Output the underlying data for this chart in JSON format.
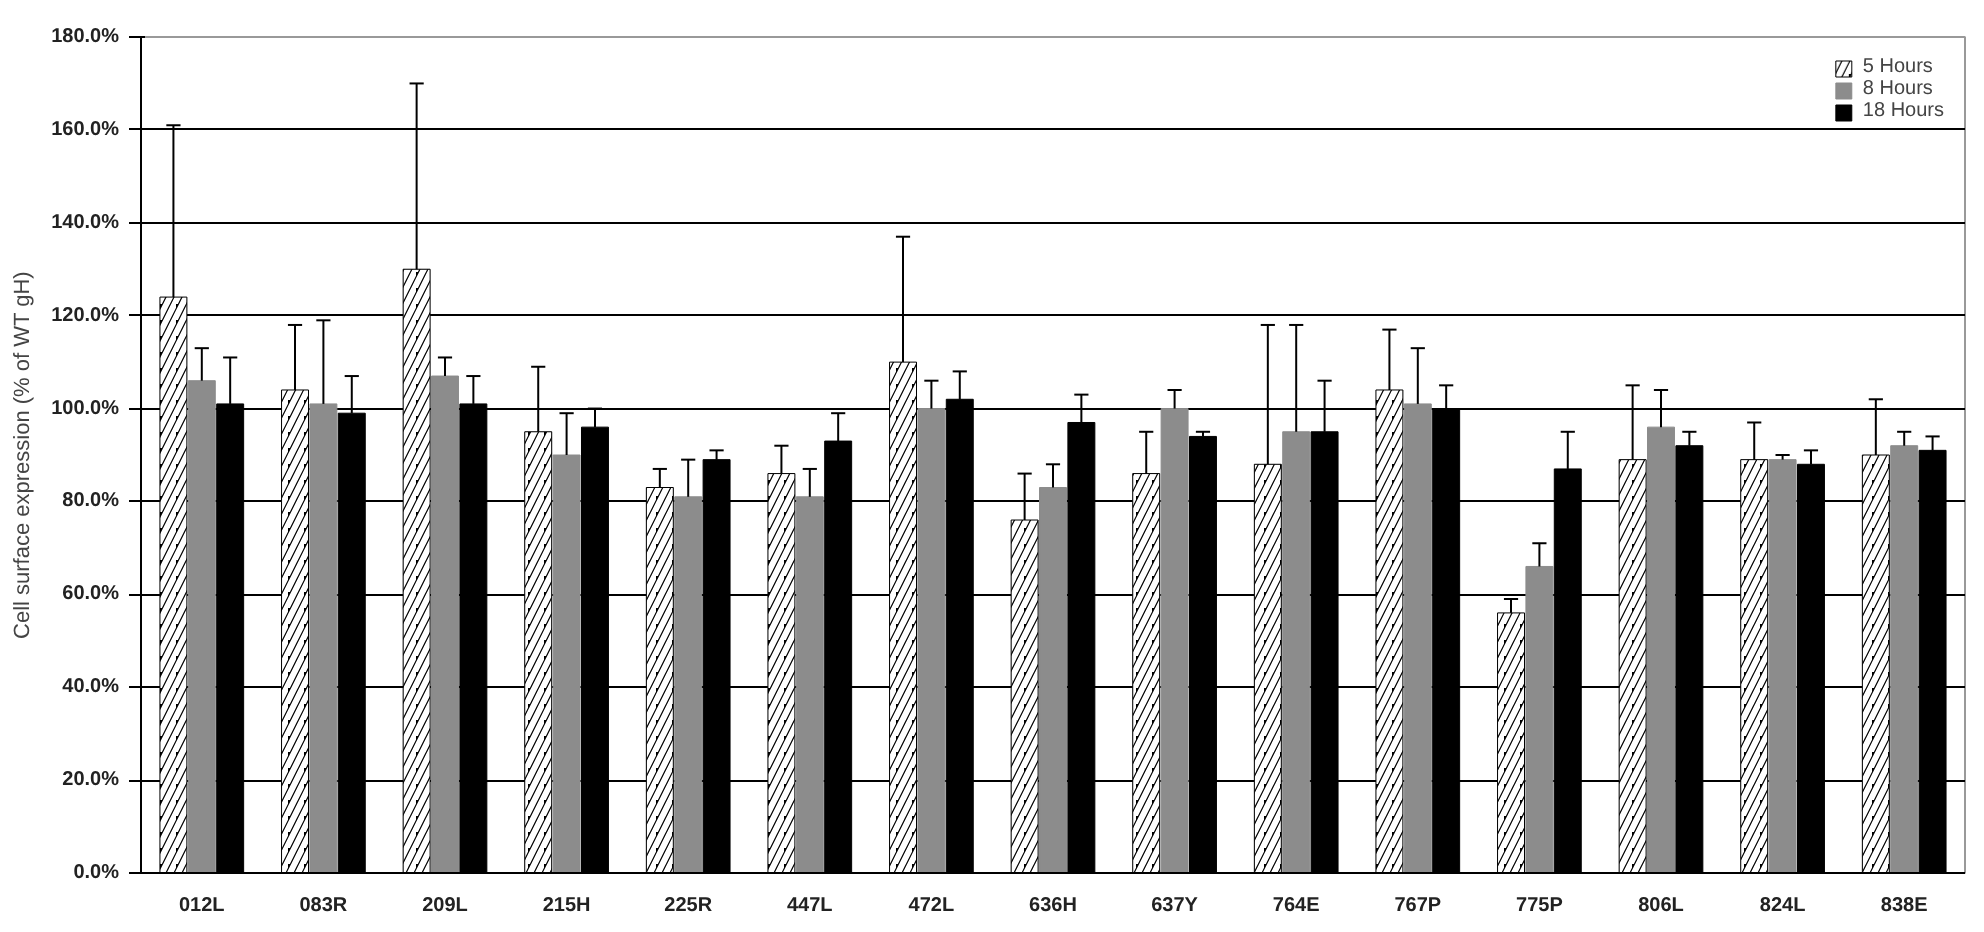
{
  "chart_data": {
    "type": "bar",
    "ylabel": "Cell surface expression (% of WT gH)",
    "categories": [
      "012L",
      "083R",
      "209L",
      "215H",
      "225R",
      "447L",
      "472L",
      "636H",
      "637Y",
      "764E",
      "767P",
      "775P",
      "806L",
      "824L",
      "838E"
    ],
    "series": [
      {
        "name": "5 Hours",
        "color": "#000000",
        "values": [
          124,
          104,
          130,
          95,
          83,
          86,
          110,
          76,
          86,
          88,
          104,
          56,
          89,
          89,
          90
        ],
        "errors": [
          37,
          14,
          40,
          14,
          4,
          6,
          27,
          10,
          9,
          30,
          13,
          3,
          16,
          8,
          12
        ]
      },
      {
        "name": "8 Hours",
        "color": "#8c8c8c",
        "values": [
          106,
          101,
          107,
          90,
          81,
          81,
          100,
          83,
          100,
          95,
          101,
          66,
          96,
          89,
          92
        ],
        "errors": [
          7,
          18,
          4,
          9,
          8,
          6,
          6,
          5,
          4,
          23,
          12,
          5,
          8,
          1,
          3
        ]
      },
      {
        "name": "18 Hours",
        "color": "#000000",
        "values": [
          101,
          99,
          101,
          96,
          89,
          93,
          102,
          97,
          94,
          95,
          100,
          87,
          92,
          88,
          91
        ],
        "errors": [
          10,
          8,
          6,
          4,
          2,
          6,
          6,
          6,
          1,
          11,
          5,
          8,
          3,
          3,
          3
        ]
      }
    ],
    "ylim": [
      0,
      180
    ],
    "yticks": [
      {
        "value": 0,
        "label": "0.0%"
      },
      {
        "value": 20,
        "label": "20.0%"
      },
      {
        "value": 40,
        "label": "40.0%"
      },
      {
        "value": 60,
        "label": "60.0%"
      },
      {
        "value": 80,
        "label": "80.0%"
      },
      {
        "value": 100,
        "label": "100.0%"
      },
      {
        "value": 120,
        "label": "120.0%"
      },
      {
        "value": 140,
        "label": "140.0%"
      },
      {
        "value": 160,
        "label": "160.0%"
      },
      {
        "value": 180,
        "label": "180.0%"
      }
    ],
    "grid": "y",
    "legend": "top right"
  }
}
